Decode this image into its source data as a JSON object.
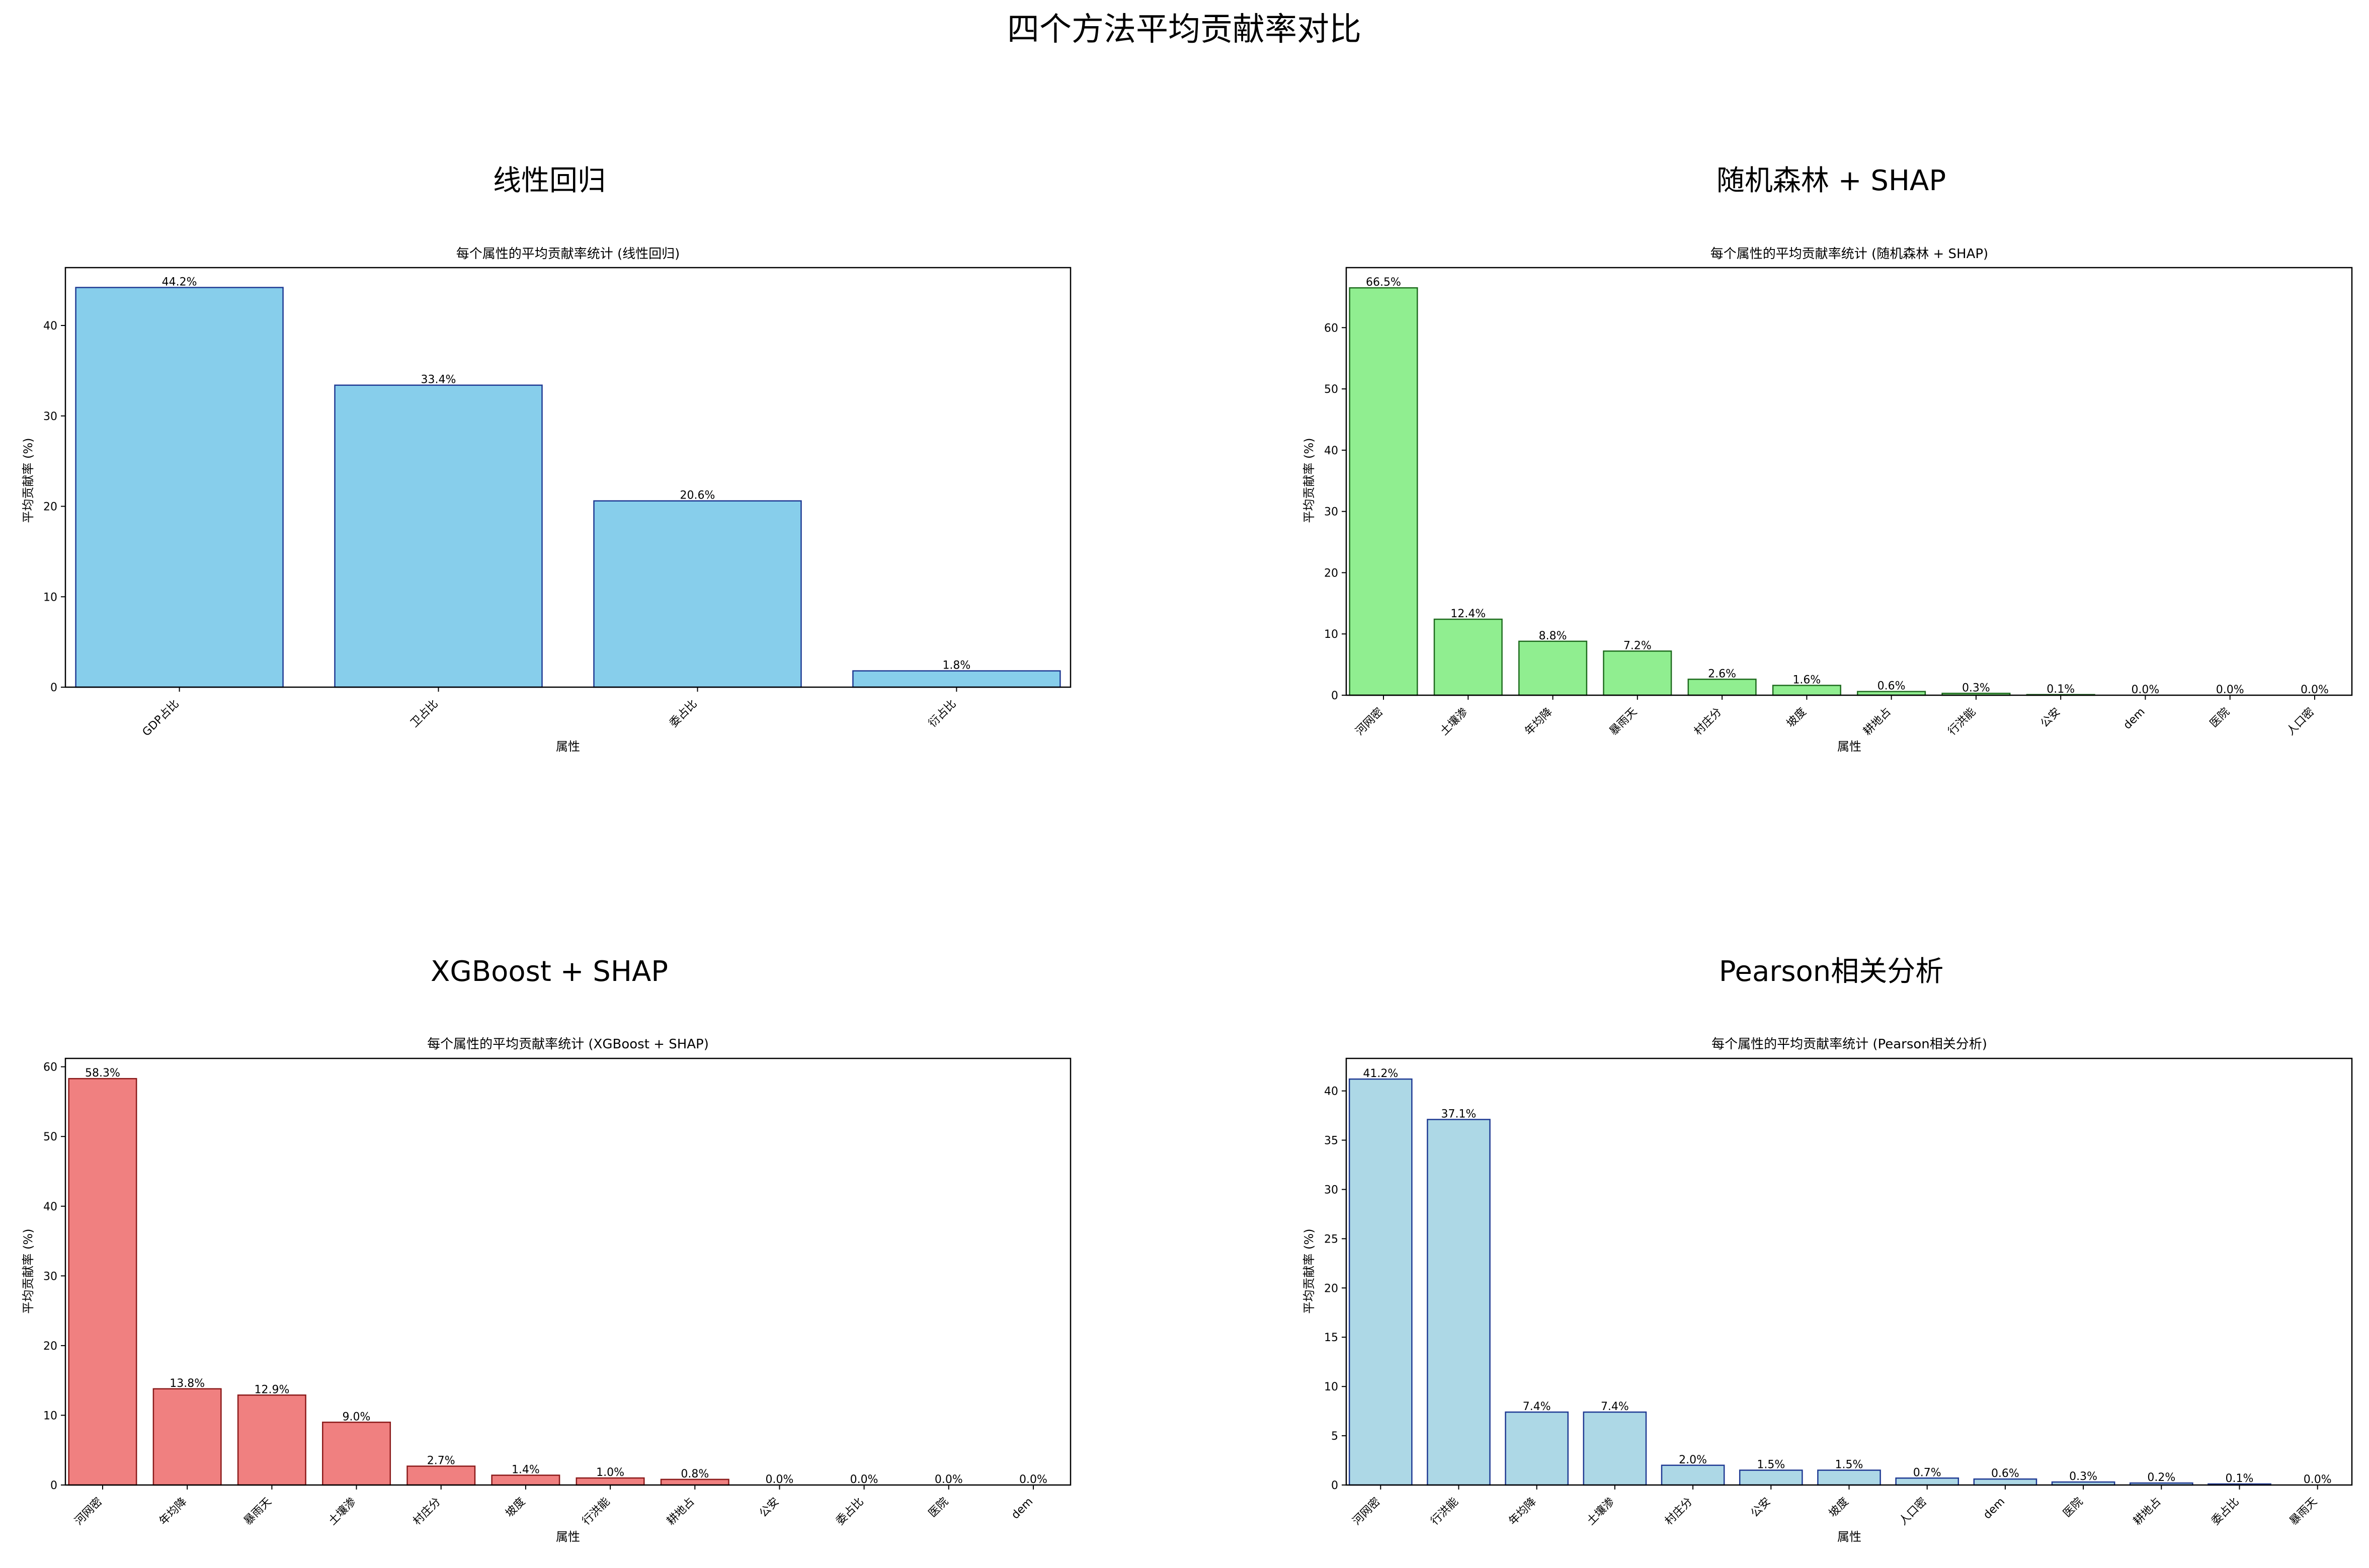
{
  "figure": {
    "title": "四个方法平均贡献率对比"
  },
  "chart_data": [
    {
      "type": "bar",
      "caption": "线性回归",
      "title": "每个属性的平均贡献率统计 (线性回归)",
      "xlabel": "属性",
      "ylabel": "平均贡献率 (%)",
      "categories": [
        "GDP占比",
        "卫占比",
        "委占比",
        "衍占比"
      ],
      "values": [
        44.2,
        33.4,
        20.6,
        1.8
      ],
      "labels": [
        "44.2%",
        "33.4%",
        "20.6%",
        "1.8%"
      ],
      "ylim": [
        0,
        46.4
      ],
      "yticks": [
        0,
        10,
        20,
        30,
        40
      ],
      "grid": false,
      "colors": {
        "fill": "#87CEEB",
        "edge": "#1F3A93"
      }
    },
    {
      "type": "bar",
      "caption": "随机森林 + SHAP",
      "title": "每个属性的平均贡献率统计 (随机森林 + SHAP)",
      "xlabel": "属性",
      "ylabel": "平均贡献率 (%)",
      "categories": [
        "河网密",
        "土壤渗",
        "年均降",
        "暴雨天",
        "村庄分",
        "坡度",
        "耕地占",
        "行洪能",
        "公安",
        "dem",
        "医院",
        "人口密"
      ],
      "values": [
        66.5,
        12.4,
        8.8,
        7.2,
        2.6,
        1.6,
        0.6,
        0.3,
        0.1,
        0.0,
        0.0,
        0.0
      ],
      "labels": [
        "66.5%",
        "12.4%",
        "8.8%",
        "7.2%",
        "2.6%",
        "1.6%",
        "0.6%",
        "0.3%",
        "0.1%",
        "0.0%",
        "0.0%",
        "0.0%"
      ],
      "ylim": [
        0,
        69.8
      ],
      "yticks": [
        0,
        10,
        20,
        30,
        40,
        50,
        60
      ],
      "grid": false,
      "colors": {
        "fill": "#90EE90",
        "edge": "#1E6B1E"
      }
    },
    {
      "type": "bar",
      "caption": "XGBoost + SHAP",
      "title": "每个属性的平均贡献率统计 (XGBoost + SHAP)",
      "xlabel": "属性",
      "ylabel": "平均贡献率 (%)",
      "categories": [
        "河网密",
        "年均降",
        "暴雨天",
        "土壤渗",
        "村庄分",
        "坡度",
        "行洪能",
        "耕地占",
        "公安",
        "委占比",
        "医院",
        "dem"
      ],
      "values": [
        58.3,
        13.8,
        12.9,
        9.0,
        2.7,
        1.4,
        1.0,
        0.8,
        0.0,
        0.0,
        0.0,
        0.0
      ],
      "labels": [
        "58.3%",
        "13.8%",
        "12.9%",
        "9.0%",
        "2.7%",
        "1.4%",
        "1.0%",
        "0.8%",
        "0.0%",
        "0.0%",
        "0.0%",
        "0.0%"
      ],
      "ylim": [
        0,
        61.2
      ],
      "yticks": [
        0,
        10,
        20,
        30,
        40,
        50,
        60
      ],
      "grid": false,
      "colors": {
        "fill": "#F08080",
        "edge": "#8B1A1A"
      }
    },
    {
      "type": "bar",
      "caption": "Pearson相关分析",
      "title": "每个属性的平均贡献率统计 (Pearson相关分析)",
      "xlabel": "属性",
      "ylabel": "平均贡献率 (%)",
      "categories": [
        "河网密",
        "行洪能",
        "年均降",
        "土壤渗",
        "村庄分",
        "公安",
        "坡度",
        "人口密",
        "dem",
        "医院",
        "耕地占",
        "委占比",
        "暴雨天"
      ],
      "values": [
        41.2,
        37.1,
        7.4,
        7.4,
        2.0,
        1.5,
        1.5,
        0.7,
        0.6,
        0.3,
        0.2,
        0.1,
        0.0
      ],
      "labels": [
        "41.2%",
        "37.1%",
        "7.4%",
        "7.4%",
        "2.0%",
        "1.5%",
        "1.5%",
        "0.7%",
        "0.6%",
        "0.3%",
        "0.2%",
        "0.1%",
        "0.0%"
      ],
      "ylim": [
        0,
        43.3
      ],
      "yticks": [
        0,
        5,
        10,
        15,
        20,
        25,
        30,
        35,
        40
      ],
      "grid": false,
      "colors": {
        "fill": "#ADD8E6",
        "edge": "#1F3A93"
      }
    }
  ]
}
